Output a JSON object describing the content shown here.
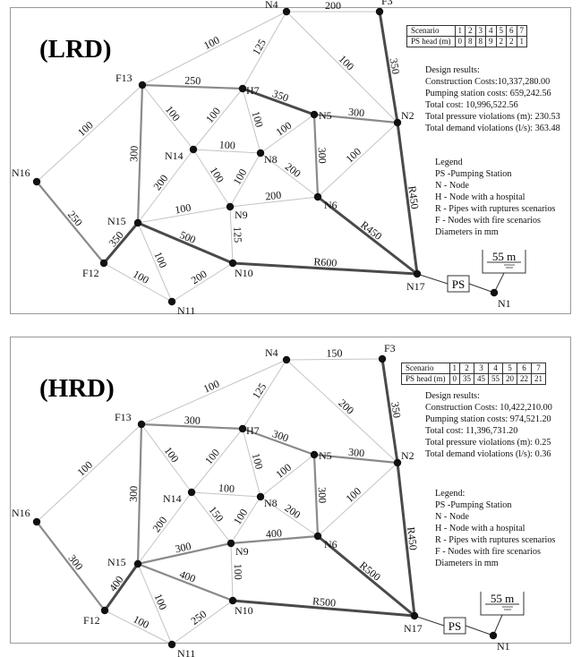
{
  "panels": [
    {
      "id": "lrd",
      "title": "(LRD)",
      "scenario_table": {
        "row1_label": "Scenario",
        "row2_label": "PS head (m)",
        "scenarios": [
          "1",
          "2",
          "3",
          "4",
          "5",
          "6",
          "7"
        ],
        "heads": [
          "0",
          "8",
          "8",
          "9",
          "2",
          "2",
          "1"
        ]
      },
      "design_results": [
        "Design results:",
        "Construction Costs:10,337,280.00",
        "Pumping station costs: 659,242.56",
        "Total cost: 10,996,522.56",
        "Total pressure violations (m): 230.53",
        "Total demand violations (l/s): 363.48"
      ],
      "legend": [
        "Legend",
        "PS -Pumping Station",
        "N - Node",
        "H - Node with a hospital",
        "R - Pipes with ruptures scenarios",
        "F - Nodes with fire scenarios",
        "Diameters in mm"
      ],
      "pipes": [
        {
          "a": "N4",
          "b": "F3",
          "label": "200",
          "w": 1
        },
        {
          "a": "F3",
          "b": "N2",
          "label": "350",
          "w": 3
        },
        {
          "a": "N4",
          "b": "F13",
          "label": "100",
          "w": 1
        },
        {
          "a": "N4",
          "b": "H7",
          "label": "125",
          "w": 1
        },
        {
          "a": "N4",
          "b": "N2",
          "label": "100",
          "w": 1
        },
        {
          "a": "F13",
          "b": "H7",
          "label": "250",
          "w": 2
        },
        {
          "a": "H7",
          "b": "N5",
          "label": "350",
          "w": 3
        },
        {
          "a": "N5",
          "b": "N2",
          "label": "300",
          "w": 2
        },
        {
          "a": "F13",
          "b": "N14",
          "label": "100",
          "w": 1
        },
        {
          "a": "H7",
          "b": "N14",
          "label": "100",
          "w": 1
        },
        {
          "a": "H7",
          "b": "N8",
          "label": "100",
          "w": 1
        },
        {
          "a": "N5",
          "b": "N8",
          "label": "100",
          "w": 1
        },
        {
          "a": "N14",
          "b": "N8",
          "label": "100",
          "w": 1
        },
        {
          "a": "N5",
          "b": "N6",
          "label": "300",
          "w": 2
        },
        {
          "a": "N2",
          "b": "N6",
          "label": "100",
          "w": 1
        },
        {
          "a": "N8",
          "b": "N6",
          "label": "200",
          "w": 1
        },
        {
          "a": "N14",
          "b": "N9",
          "label": "100",
          "w": 1
        },
        {
          "a": "N8",
          "b": "N9",
          "label": "100",
          "w": 1
        },
        {
          "a": "N14",
          "b": "N15",
          "label": "200",
          "w": 1
        },
        {
          "a": "N9",
          "b": "N6",
          "label": "200",
          "w": 1
        },
        {
          "a": "N15",
          "b": "N9",
          "label": "100",
          "w": 1
        },
        {
          "a": "N9",
          "b": "N10",
          "label": "125",
          "w": 1
        },
        {
          "a": "F13",
          "b": "N15",
          "label": "300",
          "w": 2
        },
        {
          "a": "N16",
          "b": "F13",
          "label": "100",
          "w": 1
        },
        {
          "a": "N16",
          "b": "F12",
          "label": "250",
          "w": 2
        },
        {
          "a": "F12",
          "b": "N15",
          "label": "350",
          "w": 3
        },
        {
          "a": "N15",
          "b": "N10",
          "label": "500",
          "w": 3
        },
        {
          "a": "N15",
          "b": "N11",
          "label": "100",
          "w": 1
        },
        {
          "a": "F12",
          "b": "N11",
          "label": "100",
          "w": 1
        },
        {
          "a": "N11",
          "b": "N10",
          "label": "200",
          "w": 1
        },
        {
          "a": "N10",
          "b": "N17",
          "label": "R600",
          "w": 3
        },
        {
          "a": "N6",
          "b": "N17",
          "label": "R450",
          "w": 3
        },
        {
          "a": "N2",
          "b": "N17",
          "label": "R450",
          "w": 3
        }
      ]
    },
    {
      "id": "hrd",
      "title": "(HRD)",
      "scenario_table": {
        "row1_label": "Scenario",
        "row2_label": "PS head (m)",
        "scenarios": [
          "1",
          "2",
          "3",
          "4",
          "5",
          "6",
          "7"
        ],
        "heads": [
          "0",
          "35",
          "45",
          "55",
          "20",
          "22",
          "21"
        ]
      },
      "design_results": [
        "Design results:",
        "Construction Costs: 10,422,210.00",
        "Pumping station costs: 974,521.20",
        "Total cost: 11,396,731.20",
        "Total pressure violations (m): 0.25",
        "Total demand violations (l/s): 0.36"
      ],
      "legend": [
        "Legend:",
        "PS -Pumping Station",
        "N - Node",
        "H - Node with a hospital",
        "R - Pipes with ruptures scenarios",
        "F - Nodes with fire scenarios",
        "Diameters in mm"
      ],
      "pipes": [
        {
          "a": "N4",
          "b": "F3",
          "label": "150",
          "w": 1
        },
        {
          "a": "F3",
          "b": "N2",
          "label": "350",
          "w": 3
        },
        {
          "a": "N4",
          "b": "F13",
          "label": "100",
          "w": 1
        },
        {
          "a": "N4",
          "b": "H7",
          "label": "125",
          "w": 1
        },
        {
          "a": "N4",
          "b": "N2",
          "label": "200",
          "w": 1
        },
        {
          "a": "F13",
          "b": "H7",
          "label": "300",
          "w": 2
        },
        {
          "a": "H7",
          "b": "N5",
          "label": "300",
          "w": 2
        },
        {
          "a": "N5",
          "b": "N2",
          "label": "300",
          "w": 2
        },
        {
          "a": "F13",
          "b": "N14",
          "label": "100",
          "w": 1
        },
        {
          "a": "H7",
          "b": "N14",
          "label": "100",
          "w": 1
        },
        {
          "a": "H7",
          "b": "N8",
          "label": "100",
          "w": 1
        },
        {
          "a": "N5",
          "b": "N8",
          "label": "100",
          "w": 1
        },
        {
          "a": "N14",
          "b": "N8",
          "label": "100",
          "w": 1
        },
        {
          "a": "N5",
          "b": "N6",
          "label": "300",
          "w": 2
        },
        {
          "a": "N2",
          "b": "N6",
          "label": "100",
          "w": 1
        },
        {
          "a": "N8",
          "b": "N6",
          "label": "200",
          "w": 1
        },
        {
          "a": "N14",
          "b": "N9",
          "label": "150",
          "w": 1
        },
        {
          "a": "N8",
          "b": "N9",
          "label": "100",
          "w": 1
        },
        {
          "a": "N14",
          "b": "N15",
          "label": "200",
          "w": 1
        },
        {
          "a": "N9",
          "b": "N6",
          "label": "400",
          "w": 2
        },
        {
          "a": "N15",
          "b": "N9",
          "label": "300",
          "w": 2
        },
        {
          "a": "N9",
          "b": "N10",
          "label": "100",
          "w": 1
        },
        {
          "a": "F13",
          "b": "N15",
          "label": "300",
          "w": 2
        },
        {
          "a": "N16",
          "b": "F13",
          "label": "100",
          "w": 1
        },
        {
          "a": "N16",
          "b": "F12",
          "label": "300",
          "w": 2
        },
        {
          "a": "F12",
          "b": "N15",
          "label": "400",
          "w": 3
        },
        {
          "a": "N15",
          "b": "N10",
          "label": "400",
          "w": 2
        },
        {
          "a": "N15",
          "b": "N11",
          "label": "100",
          "w": 1
        },
        {
          "a": "F12",
          "b": "N11",
          "label": "100",
          "w": 1
        },
        {
          "a": "N11",
          "b": "N10",
          "label": "250",
          "w": 1
        },
        {
          "a": "N10",
          "b": "N17",
          "label": "R500",
          "w": 3
        },
        {
          "a": "N6",
          "b": "N17",
          "label": "R500",
          "w": 3
        },
        {
          "a": "N2",
          "b": "N17",
          "label": "R450",
          "w": 3
        }
      ]
    }
  ],
  "nodes": [
    "N4",
    "F3",
    "F13",
    "H7",
    "N5",
    "N2",
    "N14",
    "N8",
    "N16",
    "N15",
    "N9",
    "N6",
    "F12",
    "N10",
    "N11",
    "N17",
    "N1"
  ],
  "pumping_station": {
    "label": "PS"
  },
  "reservoir": {
    "label": "55 m"
  },
  "colors": {
    "thin": "#c4c4c4",
    "medium": "#8a8a8a",
    "thick": "#4a4a4a",
    "node": "#111111"
  }
}
